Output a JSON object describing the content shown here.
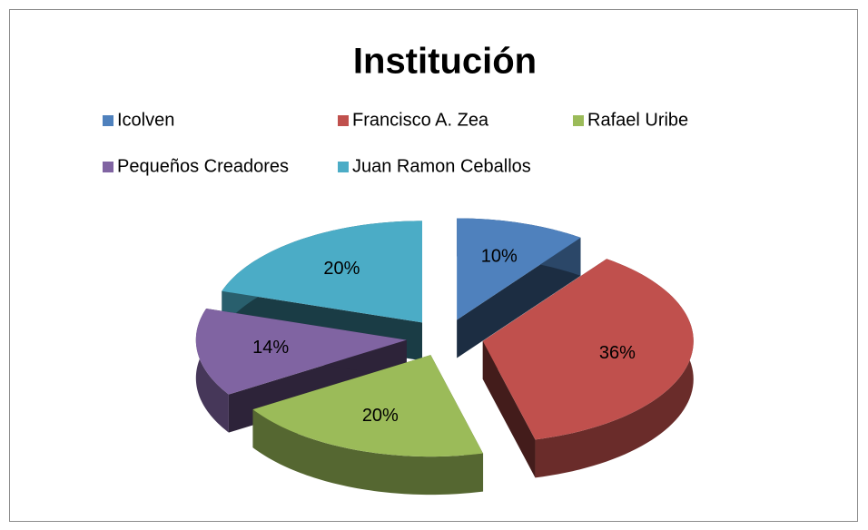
{
  "chart_data": {
    "type": "pie",
    "title": "Institución",
    "categories": [
      "Icolven",
      "Francisco A. Zea",
      "Rafael Uribe",
      "Pequeños Creadores",
      "Juan Ramon Ceballos"
    ],
    "values": [
      10,
      36,
      20,
      14,
      20
    ],
    "value_labels": [
      "10%",
      "36%",
      "20%",
      "14%",
      "20%"
    ],
    "colors": [
      "#4f81bd",
      "#c0504d",
      "#9bbb59",
      "#8064a2",
      "#4bacc6"
    ]
  }
}
